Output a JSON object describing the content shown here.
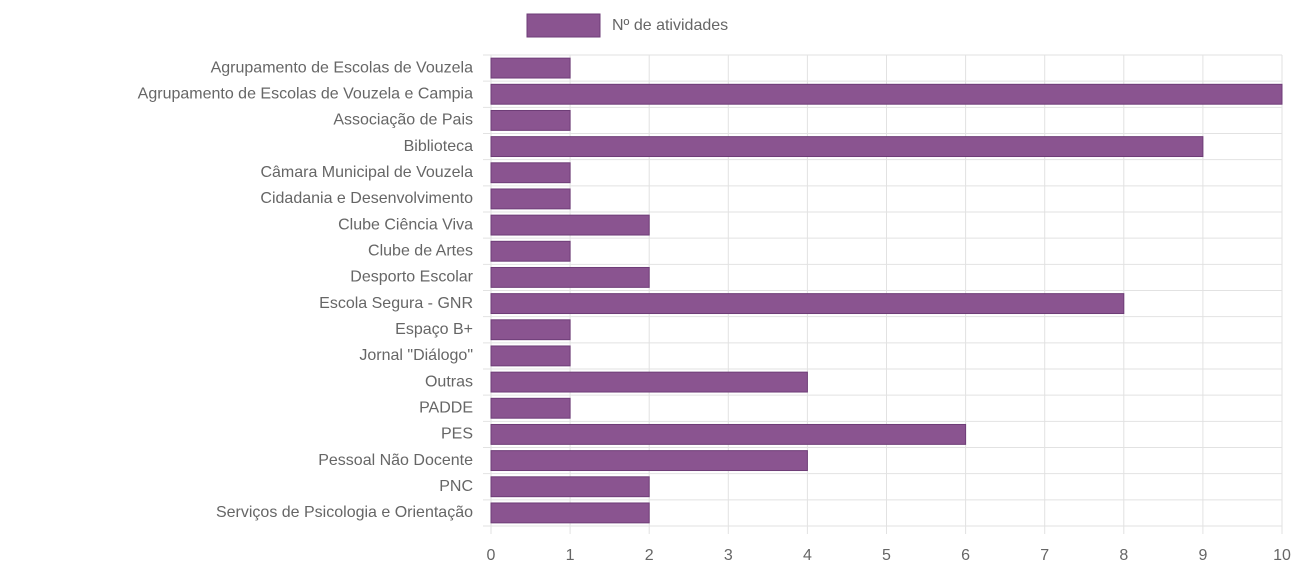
{
  "chart_data": {
    "type": "bar",
    "orientation": "horizontal",
    "categories": [
      "Agrupamento de Escolas de Vouzela",
      "Agrupamento de Escolas de Vouzela e Campia",
      "Associação de Pais",
      "Biblioteca",
      "Câmara Municipal de Vouzela",
      "Cidadania e Desenvolvimento",
      "Clube Ciência Viva",
      "Clube de Artes",
      "Desporto Escolar",
      "Escola Segura - GNR",
      "Espaço B+",
      "Jornal \"Diálogo\"",
      "Outras",
      "PADDE",
      "PES",
      "Pessoal Não Docente",
      "PNC",
      "Serviços de Psicologia e Orientação"
    ],
    "series": [
      {
        "name": "Nº de atividades",
        "color": "#8a5490",
        "values": [
          1,
          10,
          1,
          9,
          1,
          1,
          2,
          1,
          2,
          8,
          1,
          1,
          4,
          1,
          6,
          4,
          2,
          2
        ]
      }
    ],
    "xlim": [
      0,
      10
    ],
    "xticks": [
      0,
      1,
      2,
      3,
      4,
      5,
      6,
      7,
      8,
      9,
      10
    ],
    "grid": true,
    "legend": "top"
  }
}
